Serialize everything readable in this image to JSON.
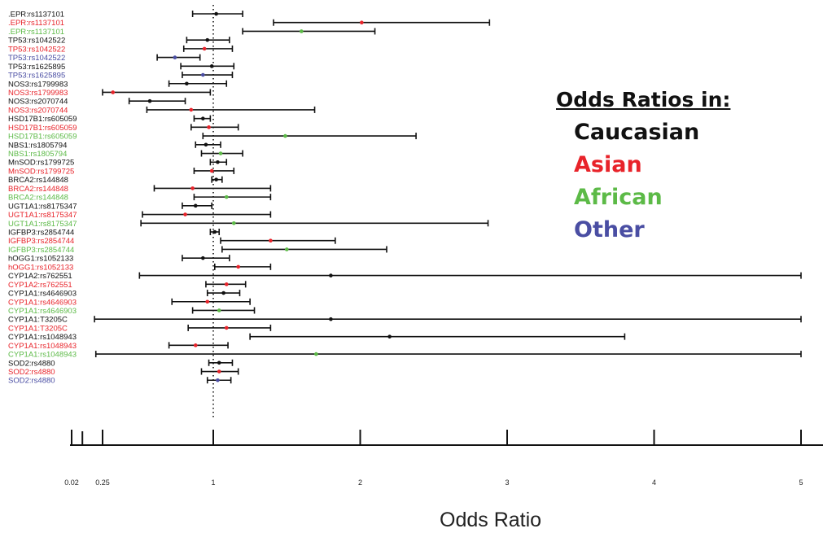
{
  "chart_data": {
    "type": "forest",
    "title": "",
    "xlabel": "Odds Ratio",
    "ylabel": "",
    "reference_line": 1,
    "xlim": [
      0.02,
      5
    ],
    "axis_breakpoints": [
      0.02,
      0.25,
      1
    ],
    "x_ticks": [
      {
        "value": 0.02,
        "label": "0.02"
      },
      {
        "value": 0.25,
        "label": "0.25"
      },
      {
        "value": 1,
        "label": "1"
      },
      {
        "value": 2,
        "label": "2"
      },
      {
        "value": 3,
        "label": "3"
      },
      {
        "value": 4,
        "label": "4"
      },
      {
        "value": 5,
        "label": "5"
      }
    ],
    "minor_ticks": [
      0.1
    ],
    "legend": {
      "title": "Odds Ratios in:",
      "placement": "right",
      "entries": [
        {
          "name": "Caucasian",
          "color": "#111111"
        },
        {
          "name": "Asian",
          "color": "#e8232a"
        },
        {
          "name": "African",
          "color": "#5cba47"
        },
        {
          "name": "Other",
          "color": "#4a4ea3"
        }
      ]
    },
    "rows": [
      {
        "label": ".EPR:rs1137101",
        "group": "Caucasian",
        "or": 1.02,
        "lower": 0.86,
        "upper": 1.2
      },
      {
        "label": ".EPR:rs1137101",
        "group": "Asian",
        "or": 2.01,
        "lower": 1.41,
        "upper": 2.88
      },
      {
        "label": ".EPR:rs1137101",
        "group": "African",
        "or": 1.6,
        "lower": 1.2,
        "upper": 2.1
      },
      {
        "label": "TP53:rs1042522",
        "group": "Caucasian",
        "or": 0.96,
        "lower": 0.82,
        "upper": 1.11
      },
      {
        "label": "TP53:rs1042522",
        "group": "Asian",
        "or": 0.94,
        "lower": 0.8,
        "upper": 1.13
      },
      {
        "label": "TP53:rs1042522",
        "group": "Other",
        "or": 0.74,
        "lower": 0.62,
        "upper": 0.91
      },
      {
        "label": "TP53:rs1625895",
        "group": "Caucasian",
        "or": 0.99,
        "lower": 0.78,
        "upper": 1.14
      },
      {
        "label": "TP53:rs1625895",
        "group": "Other",
        "or": 0.93,
        "lower": 0.79,
        "upper": 1.13
      },
      {
        "label": "NOS3:rs1799983",
        "group": "Caucasian",
        "or": 0.82,
        "lower": 0.7,
        "upper": 1.09
      },
      {
        "label": "NOS3:rs1799983",
        "group": "Asian",
        "or": 0.32,
        "lower": 0.25,
        "upper": 0.98
      },
      {
        "label": "NOS3:rs2070744",
        "group": "Caucasian",
        "or": 0.57,
        "lower": 0.43,
        "upper": 0.81
      },
      {
        "label": "NOS3:rs2070744",
        "group": "Asian",
        "or": 0.85,
        "lower": 0.55,
        "upper": 1.69
      },
      {
        "label": "HSD17B1:rs605059",
        "group": "Caucasian",
        "or": 0.93,
        "lower": 0.87,
        "upper": 0.98
      },
      {
        "label": "HSD17B1:rs605059",
        "group": "Asian",
        "or": 0.97,
        "lower": 0.85,
        "upper": 1.17
      },
      {
        "label": "HSD17B1:rs605059",
        "group": "African",
        "or": 1.49,
        "lower": 0.93,
        "upper": 2.38
      },
      {
        "label": "NBS1:rs1805794",
        "group": "Caucasian",
        "or": 0.95,
        "lower": 0.88,
        "upper": 1.05
      },
      {
        "label": "NBS1:rs1805794",
        "group": "African",
        "or": 1.05,
        "lower": 0.92,
        "upper": 1.2
      },
      {
        "label": "MnSOD:rs1799725",
        "group": "Caucasian",
        "or": 1.03,
        "lower": 0.98,
        "upper": 1.09
      },
      {
        "label": "MnSOD:rs1799725",
        "group": "Asian",
        "or": 0.99,
        "lower": 0.87,
        "upper": 1.14
      },
      {
        "label": "BRCA2:rs144848",
        "group": "Caucasian",
        "or": 1.02,
        "lower": 0.99,
        "upper": 1.06
      },
      {
        "label": "BRCA2:rs144848",
        "group": "Asian",
        "or": 0.86,
        "lower": 0.6,
        "upper": 1.39
      },
      {
        "label": "BRCA2:rs144848",
        "group": "African",
        "or": 1.09,
        "lower": 0.87,
        "upper": 1.39
      },
      {
        "label": "UGT1A1:rs8175347",
        "group": "Caucasian",
        "or": 0.88,
        "lower": 0.79,
        "upper": 0.99
      },
      {
        "label": "UGT1A1:rs8175347",
        "group": "Asian",
        "or": 0.81,
        "lower": 0.52,
        "upper": 1.39
      },
      {
        "label": "UGT1A1:rs8175347",
        "group": "African",
        "or": 1.14,
        "lower": 0.51,
        "upper": 2.87
      },
      {
        "label": "IGFBP3:rs2854744",
        "group": "Caucasian",
        "or": 1.01,
        "lower": 0.98,
        "upper": 1.04
      },
      {
        "label": "IGFBP3:rs2854744",
        "group": "Asian",
        "or": 1.39,
        "lower": 1.05,
        "upper": 1.83
      },
      {
        "label": "IGFBP3:rs2854744",
        "group": "African",
        "or": 1.5,
        "lower": 1.06,
        "upper": 2.18
      },
      {
        "label": "hOGG1:rs1052133",
        "group": "Caucasian",
        "or": 0.93,
        "lower": 0.79,
        "upper": 1.11
      },
      {
        "label": "hOGG1:rs1052133",
        "group": "Asian",
        "or": 1.17,
        "lower": 1.01,
        "upper": 1.39
      },
      {
        "label": "CYP1A2:rs762551",
        "group": "Caucasian",
        "or": 1.8,
        "lower": 0.5,
        "upper": 5.0
      },
      {
        "label": "CYP1A2:rs762551",
        "group": "Asian",
        "or": 1.09,
        "lower": 0.95,
        "upper": 1.22
      },
      {
        "label": "CYP1A1:rs4646903",
        "group": "Caucasian",
        "or": 1.07,
        "lower": 0.96,
        "upper": 1.18
      },
      {
        "label": "CYP1A1:rs4646903",
        "group": "Asian",
        "or": 0.96,
        "lower": 0.72,
        "upper": 1.25
      },
      {
        "label": "CYP1A1:rs4646903",
        "group": "African",
        "or": 1.04,
        "lower": 0.86,
        "upper": 1.28
      },
      {
        "label": "CYP1A1:T3205C",
        "group": "Caucasian",
        "or": 1.8,
        "lower": 0.19,
        "upper": 5.0
      },
      {
        "label": "CYP1A1:T3205C",
        "group": "Asian",
        "or": 1.09,
        "lower": 0.83,
        "upper": 1.39
      },
      {
        "label": "CYP1A1:rs1048943",
        "group": "Caucasian",
        "or": 2.2,
        "lower": 1.25,
        "upper": 3.8
      },
      {
        "label": "CYP1A1:rs1048943",
        "group": "Asian",
        "or": 0.88,
        "lower": 0.7,
        "upper": 1.1
      },
      {
        "label": "CYP1A1:rs1048943",
        "group": "African",
        "or": 1.7,
        "lower": 0.2,
        "upper": 5.0
      },
      {
        "label": "SOD2:rs4880",
        "group": "Caucasian",
        "or": 1.04,
        "lower": 0.97,
        "upper": 1.13
      },
      {
        "label": "SOD2:rs4880",
        "group": "Asian",
        "or": 1.04,
        "lower": 0.92,
        "upper": 1.17
      },
      {
        "label": "SOD2:rs4880",
        "group": "Other",
        "or": 1.03,
        "lower": 0.96,
        "upper": 1.12
      }
    ]
  }
}
